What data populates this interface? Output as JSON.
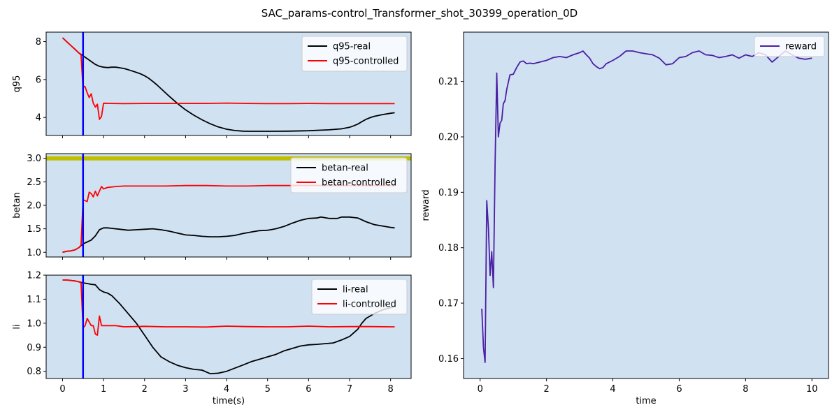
{
  "figure": {
    "title": "SAC_params-control_Transformer_shot_30399_operation_0D"
  },
  "chart_data": [
    {
      "id": "q95",
      "type": "line",
      "ylabel": "q95",
      "xlabel": "",
      "xlim": [
        -0.4,
        8.5
      ],
      "ylim": [
        3.05,
        8.5
      ],
      "xticks": [
        0,
        1,
        2,
        3,
        4,
        5,
        6,
        7,
        8
      ],
      "xtick_labels_visible": false,
      "yticks": [
        4,
        6,
        8
      ],
      "background": "#d0e1f2",
      "vline": {
        "x": 0.5,
        "color": "#0000ff"
      },
      "legend": "top-right",
      "series": [
        {
          "name": "q95-real",
          "color": "#000000",
          "x": [
            0,
            0.1,
            0.2,
            0.3,
            0.4,
            0.5,
            0.6,
            0.7,
            0.8,
            0.9,
            1.0,
            1.1,
            1.2,
            1.3,
            1.4,
            1.5,
            1.6,
            1.7,
            1.8,
            1.9,
            2.0,
            2.1,
            2.2,
            2.3,
            2.4,
            2.5,
            2.6,
            2.8,
            3.0,
            3.2,
            3.4,
            3.6,
            3.8,
            4.0,
            4.2,
            4.4,
            4.6,
            4.8,
            5.0,
            5.5,
            6.0,
            6.5,
            6.8,
            7.0,
            7.1,
            7.2,
            7.3,
            7.4,
            7.5,
            7.6,
            7.8,
            8.0,
            8.1
          ],
          "y": [
            8.2,
            8.0,
            7.8,
            7.6,
            7.4,
            7.25,
            7.1,
            6.95,
            6.8,
            6.7,
            6.65,
            6.63,
            6.65,
            6.65,
            6.62,
            6.58,
            6.52,
            6.45,
            6.38,
            6.3,
            6.2,
            6.07,
            5.9,
            5.72,
            5.52,
            5.32,
            5.12,
            4.74,
            4.4,
            4.12,
            3.88,
            3.67,
            3.5,
            3.38,
            3.31,
            3.28,
            3.27,
            3.27,
            3.27,
            3.28,
            3.3,
            3.35,
            3.4,
            3.48,
            3.56,
            3.65,
            3.78,
            3.9,
            3.99,
            4.06,
            4.15,
            4.22,
            4.25
          ]
        },
        {
          "name": "q95-controlled",
          "color": "#ff0000",
          "x": [
            0,
            0.1,
            0.2,
            0.3,
            0.4,
            0.45,
            0.5,
            0.52,
            0.55,
            0.6,
            0.65,
            0.7,
            0.75,
            0.8,
            0.85,
            0.9,
            0.95,
            1.0,
            1.2,
            1.5,
            2.0,
            2.5,
            3.0,
            3.5,
            4.0,
            4.5,
            5.0,
            5.5,
            6.0,
            6.5,
            7.0,
            7.5,
            8.0,
            8.1
          ],
          "y": [
            8.2,
            8.0,
            7.8,
            7.6,
            7.4,
            7.3,
            5.5,
            5.65,
            5.62,
            5.3,
            5.05,
            5.25,
            4.75,
            4.55,
            4.7,
            3.9,
            4.05,
            4.75,
            4.74,
            4.73,
            4.74,
            4.74,
            4.74,
            4.74,
            4.76,
            4.74,
            4.73,
            4.73,
            4.74,
            4.73,
            4.73,
            4.73,
            4.73,
            4.73
          ]
        }
      ]
    },
    {
      "id": "betan",
      "type": "line",
      "ylabel": "betan",
      "xlabel": "",
      "xlim": [
        -0.4,
        8.5
      ],
      "ylim": [
        0.9,
        3.1
      ],
      "xticks": [
        0,
        1,
        2,
        3,
        4,
        5,
        6,
        7,
        8
      ],
      "xtick_labels_visible": false,
      "yticks": [
        1.0,
        1.5,
        2.0,
        2.5,
        3.0
      ],
      "ytick_labels": [
        "1.0",
        "1.5",
        "2.0",
        "2.5",
        "3.0"
      ],
      "background": "#d0e1f2",
      "vline": {
        "x": 0.5,
        "color": "#0000ff"
      },
      "hline": {
        "y": 3.0,
        "color": "#bfbf00"
      },
      "legend": "top-right",
      "series": [
        {
          "name": "betan-real",
          "color": "#000000",
          "x": [
            0,
            0.1,
            0.2,
            0.3,
            0.4,
            0.5,
            0.6,
            0.7,
            0.8,
            0.9,
            1.0,
            1.1,
            1.2,
            1.4,
            1.6,
            1.8,
            2.0,
            2.2,
            2.4,
            2.6,
            2.8,
            3.0,
            3.2,
            3.4,
            3.6,
            3.8,
            4.0,
            4.2,
            4.4,
            4.6,
            4.8,
            5.0,
            5.2,
            5.4,
            5.6,
            5.8,
            6.0,
            6.2,
            6.3,
            6.5,
            6.7,
            6.8,
            7.0,
            7.2,
            7.4,
            7.6,
            7.8,
            8.0,
            8.1
          ],
          "y": [
            1.0,
            1.02,
            1.03,
            1.05,
            1.1,
            1.18,
            1.22,
            1.26,
            1.35,
            1.48,
            1.52,
            1.52,
            1.51,
            1.49,
            1.47,
            1.48,
            1.49,
            1.5,
            1.48,
            1.45,
            1.41,
            1.37,
            1.36,
            1.34,
            1.33,
            1.33,
            1.34,
            1.36,
            1.4,
            1.43,
            1.46,
            1.47,
            1.5,
            1.55,
            1.62,
            1.68,
            1.72,
            1.73,
            1.75,
            1.72,
            1.72,
            1.75,
            1.75,
            1.73,
            1.65,
            1.59,
            1.56,
            1.53,
            1.52
          ]
        },
        {
          "name": "betan-controlled",
          "color": "#ff0000",
          "x": [
            0,
            0.1,
            0.2,
            0.3,
            0.4,
            0.45,
            0.5,
            0.55,
            0.6,
            0.65,
            0.7,
            0.75,
            0.8,
            0.85,
            0.9,
            0.95,
            1.0,
            1.1,
            1.3,
            1.5,
            2.0,
            2.5,
            3.0,
            3.5,
            4.0,
            4.5,
            5.0,
            5.5,
            6.0,
            6.5,
            7.0,
            7.5,
            8.0,
            8.1
          ],
          "y": [
            1.0,
            1.02,
            1.03,
            1.05,
            1.1,
            1.15,
            2.12,
            2.1,
            2.08,
            2.28,
            2.25,
            2.18,
            2.3,
            2.2,
            2.3,
            2.4,
            2.35,
            2.38,
            2.4,
            2.41,
            2.41,
            2.41,
            2.42,
            2.42,
            2.41,
            2.41,
            2.42,
            2.42,
            2.42,
            2.42,
            2.42,
            2.42,
            2.42,
            2.42
          ]
        }
      ]
    },
    {
      "id": "li",
      "type": "line",
      "ylabel": "li",
      "xlabel": "time(s)",
      "xlim": [
        -0.4,
        8.5
      ],
      "ylim": [
        0.77,
        1.2
      ],
      "xticks": [
        0,
        1,
        2,
        3,
        4,
        5,
        6,
        7,
        8
      ],
      "xtick_labels_visible": true,
      "yticks": [
        0.8,
        0.9,
        1.0,
        1.1,
        1.2
      ],
      "ytick_labels": [
        "0.8",
        "0.9",
        "1.0",
        "1.1",
        "1.2"
      ],
      "background": "#d0e1f2",
      "vline": {
        "x": 0.5,
        "color": "#0000ff"
      },
      "legend": "top-right",
      "series": [
        {
          "name": "li-real",
          "color": "#000000",
          "x": [
            0,
            0.1,
            0.2,
            0.3,
            0.4,
            0.5,
            0.6,
            0.7,
            0.8,
            0.9,
            1.0,
            1.1,
            1.2,
            1.4,
            1.6,
            1.8,
            2.0,
            2.2,
            2.4,
            2.6,
            2.8,
            3.0,
            3.2,
            3.4,
            3.6,
            3.8,
            4.0,
            4.2,
            4.4,
            4.6,
            4.8,
            5.0,
            5.2,
            5.4,
            5.6,
            5.8,
            6.0,
            6.2,
            6.4,
            6.6,
            6.8,
            7.0,
            7.2,
            7.3,
            7.4,
            7.6,
            7.8,
            8.0,
            8.1
          ],
          "y": [
            1.18,
            1.18,
            1.178,
            1.176,
            1.172,
            1.168,
            1.165,
            1.162,
            1.16,
            1.14,
            1.13,
            1.125,
            1.115,
            1.08,
            1.04,
            1.0,
            0.95,
            0.9,
            0.86,
            0.84,
            0.825,
            0.815,
            0.808,
            0.805,
            0.79,
            0.792,
            0.8,
            0.813,
            0.826,
            0.84,
            0.85,
            0.86,
            0.87,
            0.885,
            0.895,
            0.905,
            0.91,
            0.912,
            0.915,
            0.918,
            0.93,
            0.945,
            0.975,
            1.0,
            1.02,
            1.04,
            1.055,
            1.065,
            1.07
          ]
        },
        {
          "name": "li-controlled",
          "color": "#ff0000",
          "x": [
            0,
            0.1,
            0.2,
            0.3,
            0.4,
            0.45,
            0.5,
            0.55,
            0.6,
            0.65,
            0.7,
            0.75,
            0.8,
            0.85,
            0.9,
            0.95,
            1.0,
            1.1,
            1.3,
            1.5,
            2.0,
            2.5,
            3.0,
            3.5,
            4.0,
            4.5,
            5.0,
            5.5,
            6.0,
            6.5,
            7.0,
            7.5,
            8.0,
            8.1
          ],
          "y": [
            1.18,
            1.18,
            1.178,
            1.176,
            1.172,
            1.168,
            0.98,
            0.99,
            1.02,
            1.005,
            0.99,
            0.99,
            0.955,
            0.95,
            1.03,
            0.99,
            0.99,
            0.99,
            0.99,
            0.985,
            0.987,
            0.985,
            0.985,
            0.984,
            0.988,
            0.986,
            0.985,
            0.985,
            0.988,
            0.985,
            0.986,
            0.986,
            0.985,
            0.985
          ]
        }
      ]
    },
    {
      "id": "reward",
      "type": "line",
      "ylabel": "reward",
      "xlabel": "time",
      "xlim": [
        -0.5,
        10.5
      ],
      "ylim": [
        0.1564,
        0.2189
      ],
      "xticks": [
        0,
        2,
        4,
        6,
        8,
        10
      ],
      "xtick_labels_visible": true,
      "yticks": [
        0.16,
        0.17,
        0.18,
        0.19,
        0.2,
        0.21
      ],
      "ytick_labels": [
        "0.16",
        "0.17",
        "0.18",
        "0.19",
        "0.20",
        "0.21"
      ],
      "background": "#d0e1f2",
      "legend": "top-right",
      "series": [
        {
          "name": "reward",
          "color": "#4b1fa3",
          "x": [
            0.05,
            0.1,
            0.15,
            0.2,
            0.25,
            0.3,
            0.35,
            0.4,
            0.45,
            0.5,
            0.55,
            0.6,
            0.65,
            0.7,
            0.75,
            0.8,
            0.9,
            1.0,
            1.1,
            1.2,
            1.3,
            1.4,
            1.5,
            1.6,
            1.8,
            2.0,
            2.2,
            2.4,
            2.6,
            2.8,
            3.0,
            3.1,
            3.2,
            3.3,
            3.4,
            3.5,
            3.6,
            3.7,
            3.8,
            4.0,
            4.2,
            4.4,
            4.6,
            4.8,
            5.0,
            5.2,
            5.4,
            5.6,
            5.8,
            6.0,
            6.2,
            6.4,
            6.6,
            6.8,
            7.0,
            7.2,
            7.4,
            7.6,
            7.8,
            8.0,
            8.2,
            8.4,
            8.6,
            8.8,
            9.0,
            9.2,
            9.4,
            9.6,
            9.8,
            10.0
          ],
          "y": [
            0.169,
            0.162,
            0.1593,
            0.1885,
            0.1835,
            0.175,
            0.1793,
            0.1728,
            0.195,
            0.2115,
            0.2,
            0.2025,
            0.203,
            0.206,
            0.2065,
            0.2085,
            0.2112,
            0.2113,
            0.2125,
            0.2135,
            0.2137,
            0.2132,
            0.2133,
            0.2132,
            0.2135,
            0.2138,
            0.2143,
            0.2145,
            0.2143,
            0.2148,
            0.2152,
            0.2155,
            0.2148,
            0.2142,
            0.2132,
            0.2127,
            0.2123,
            0.2125,
            0.2132,
            0.2138,
            0.2145,
            0.2155,
            0.2155,
            0.2152,
            0.215,
            0.2148,
            0.2142,
            0.213,
            0.2132,
            0.2143,
            0.2145,
            0.2152,
            0.2155,
            0.2148,
            0.2147,
            0.2143,
            0.2145,
            0.2148,
            0.2142,
            0.2148,
            0.2145,
            0.2152,
            0.2148,
            0.2135,
            0.2145,
            0.2155,
            0.2148,
            0.2142,
            0.214,
            0.2142
          ]
        }
      ]
    }
  ]
}
